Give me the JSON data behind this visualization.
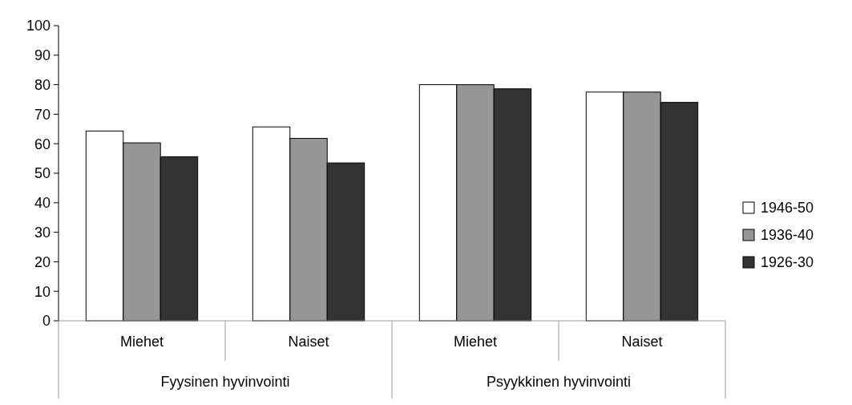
{
  "chart_data": {
    "type": "bar",
    "categories": [
      "Miehet",
      "Naiset",
      "Miehet",
      "Naiset"
    ],
    "series": [
      {
        "name": "1946-50",
        "color": "#ffffff",
        "values": [
          64.3,
          65.7,
          80.0,
          77.5
        ]
      },
      {
        "name": "1936-40",
        "color": "#969696",
        "values": [
          60.3,
          61.8,
          80.0,
          77.5
        ]
      },
      {
        "name": "1926-30",
        "color": "#333333",
        "values": [
          55.6,
          53.5,
          78.6,
          74.0
        ]
      }
    ],
    "ylim": [
      0,
      100
    ],
    "yticks": [
      0,
      10,
      20,
      30,
      40,
      50,
      60,
      70,
      80,
      90,
      100
    ],
    "grid": false,
    "legend": "right",
    "annotations": [
      "Fyysinen hyvinvointi",
      "Psyykkinen hyvinvointi"
    ]
  }
}
